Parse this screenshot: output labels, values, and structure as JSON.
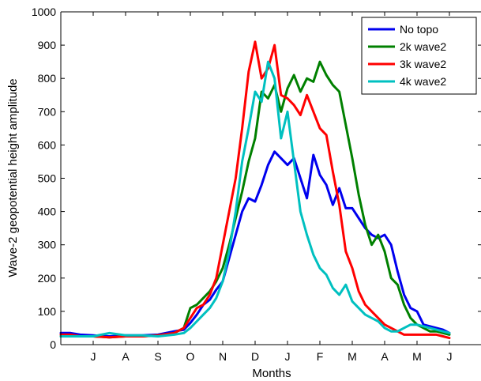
{
  "chart_data": {
    "type": "line",
    "xlabel": "Months",
    "ylabel": "Wave-2 geopotential height amplitude",
    "xlim": [
      0,
      13
    ],
    "ylim": [
      0,
      1000
    ],
    "yticks": [
      0,
      100,
      200,
      300,
      400,
      500,
      600,
      700,
      800,
      900,
      1000
    ],
    "xticks": [
      {
        "pos": 1,
        "label": "J"
      },
      {
        "pos": 2,
        "label": "A"
      },
      {
        "pos": 3,
        "label": "S"
      },
      {
        "pos": 4,
        "label": "O"
      },
      {
        "pos": 5,
        "label": "N"
      },
      {
        "pos": 6,
        "label": "D"
      },
      {
        "pos": 7,
        "label": "J"
      },
      {
        "pos": 8,
        "label": "F"
      },
      {
        "pos": 9,
        "label": "M"
      },
      {
        "pos": 10,
        "label": "A"
      },
      {
        "pos": 11,
        "label": "M"
      },
      {
        "pos": 12,
        "label": "J"
      }
    ],
    "grid": false,
    "legend_position": "top-right",
    "series": [
      {
        "name": "No topo",
        "color": "#0000ee",
        "x": [
          0,
          0.3,
          0.6,
          1,
          1.5,
          2,
          2.5,
          3,
          3.5,
          3.8,
          4,
          4.2,
          4.4,
          4.6,
          4.8,
          5,
          5.2,
          5.4,
          5.6,
          5.8,
          6,
          6.2,
          6.4,
          6.6,
          6.8,
          7,
          7.2,
          7.4,
          7.6,
          7.8,
          8,
          8.2,
          8.4,
          8.6,
          8.8,
          9,
          9.2,
          9.4,
          9.6,
          9.8,
          10,
          10.2,
          10.4,
          10.6,
          10.8,
          11,
          11.2,
          11.4,
          11.6,
          11.8,
          12
        ],
        "y": [
          35,
          35,
          30,
          28,
          25,
          28,
          28,
          30,
          40,
          45,
          65,
          90,
          120,
          135,
          165,
          190,
          260,
          330,
          400,
          440,
          430,
          480,
          540,
          580,
          560,
          540,
          560,
          500,
          440,
          570,
          510,
          480,
          420,
          470,
          410,
          410,
          380,
          350,
          330,
          320,
          330,
          300,
          220,
          150,
          110,
          100,
          60,
          55,
          50,
          45,
          35
        ]
      },
      {
        "name": "2k wave2",
        "color": "#008000",
        "x": [
          0,
          0.3,
          0.6,
          1,
          1.5,
          2,
          2.5,
          3,
          3.5,
          3.8,
          4,
          4.2,
          4.4,
          4.6,
          4.8,
          5,
          5.2,
          5.4,
          5.6,
          5.8,
          6,
          6.2,
          6.4,
          6.6,
          6.8,
          7,
          7.2,
          7.4,
          7.6,
          7.8,
          8,
          8.2,
          8.4,
          8.6,
          8.8,
          9,
          9.2,
          9.4,
          9.6,
          9.8,
          10,
          10.2,
          10.4,
          10.6,
          10.8,
          11,
          11.2,
          11.4,
          11.6,
          11.8,
          12
        ],
        "y": [
          25,
          25,
          25,
          25,
          22,
          25,
          25,
          28,
          35,
          50,
          110,
          120,
          140,
          160,
          190,
          230,
          300,
          380,
          460,
          550,
          620,
          760,
          740,
          780,
          700,
          770,
          810,
          760,
          800,
          790,
          850,
          810,
          780,
          760,
          660,
          560,
          450,
          360,
          300,
          330,
          280,
          200,
          180,
          120,
          80,
          60,
          50,
          40,
          40,
          35,
          30
        ]
      },
      {
        "name": "3k wave2",
        "color": "#ff0000",
        "x": [
          0,
          0.3,
          0.6,
          1,
          1.5,
          2,
          2.5,
          3,
          3.5,
          3.8,
          4,
          4.2,
          4.4,
          4.6,
          4.8,
          5,
          5.2,
          5.4,
          5.6,
          5.8,
          6,
          6.2,
          6.4,
          6.6,
          6.8,
          7,
          7.2,
          7.4,
          7.6,
          7.8,
          8,
          8.2,
          8.4,
          8.6,
          8.8,
          9,
          9.2,
          9.4,
          9.6,
          9.8,
          10,
          10.2,
          10.4,
          10.6,
          10.8,
          11,
          11.2,
          11.4,
          11.6,
          11.8,
          12
        ],
        "y": [
          30,
          30,
          25,
          25,
          22,
          25,
          25,
          28,
          35,
          50,
          80,
          110,
          120,
          150,
          200,
          300,
          400,
          500,
          650,
          820,
          910,
          800,
          830,
          900,
          750,
          740,
          720,
          690,
          750,
          700,
          650,
          630,
          520,
          420,
          280,
          230,
          160,
          120,
          100,
          80,
          60,
          50,
          40,
          30,
          30,
          30,
          30,
          30,
          30,
          25,
          20
        ]
      },
      {
        "name": "4k wave2",
        "color": "#00c0c0",
        "x": [
          0,
          0.3,
          0.6,
          1,
          1.5,
          2,
          2.5,
          3,
          3.5,
          3.8,
          4,
          4.2,
          4.4,
          4.6,
          4.8,
          5,
          5.2,
          5.4,
          5.6,
          5.8,
          6,
          6.2,
          6.4,
          6.6,
          6.8,
          7,
          7.2,
          7.4,
          7.6,
          7.8,
          8,
          8.2,
          8.4,
          8.6,
          8.8,
          9,
          9.2,
          9.4,
          9.6,
          9.8,
          10,
          10.2,
          10.4,
          10.6,
          10.8,
          11,
          11.2,
          11.4,
          11.6,
          11.8,
          12
        ],
        "y": [
          25,
          25,
          25,
          25,
          35,
          28,
          28,
          25,
          30,
          35,
          50,
          70,
          90,
          110,
          140,
          190,
          280,
          400,
          550,
          650,
          760,
          730,
          850,
          800,
          620,
          700,
          550,
          400,
          330,
          270,
          230,
          210,
          170,
          150,
          180,
          130,
          110,
          90,
          80,
          70,
          50,
          40,
          40,
          50,
          60,
          60,
          55,
          50,
          45,
          40,
          35
        ]
      }
    ]
  }
}
